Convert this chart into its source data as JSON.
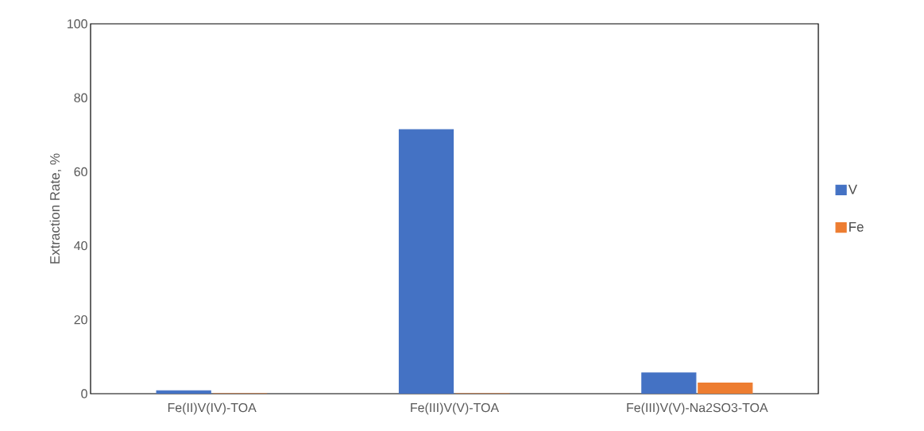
{
  "chart_data": {
    "type": "bar",
    "ylabel": "Extraction Rate, %",
    "categories": [
      "Fe(II)V(IV)-TOA",
      "Fe(III)V(V)-TOA",
      "Fe(III)V(V)-Na2SO3-TOA"
    ],
    "series": [
      {
        "name": "V",
        "color": "#4472c4",
        "values": [
          0.8,
          71.4,
          5.6
        ]
      },
      {
        "name": "Fe",
        "color": "#ed7d31",
        "values": [
          0,
          0,
          2.9
        ]
      }
    ],
    "ylim": [
      0,
      100
    ],
    "yticks": [
      0,
      20,
      40,
      60,
      80,
      100
    ],
    "grid": false,
    "legend": "right"
  }
}
